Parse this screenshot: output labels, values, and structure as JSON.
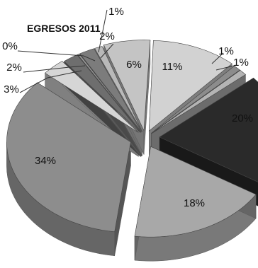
{
  "chart_data": {
    "type": "pie",
    "style": "3d-exploded",
    "title": "EGRESOS 2011",
    "values": [
      11,
      1,
      1,
      20,
      18,
      34,
      3,
      2,
      0,
      2,
      1,
      6
    ],
    "labels": [
      "11%",
      "1%",
      "1%",
      "20%",
      "18%",
      "34%",
      "3%",
      "2%",
      "0%",
      "2%",
      "1%",
      "6%"
    ],
    "colors": [
      "#d2d2d2",
      "#8c8c8c",
      "#b4b4b4",
      "#2a2a2a",
      "#a8a8a8",
      "#8d8d8d",
      "#d6d6d6",
      "#6e6e6e",
      "#9a9a9a",
      "#7c7c7c",
      "#b9b9b9",
      "#c4c4c4"
    ],
    "legend": "none"
  }
}
